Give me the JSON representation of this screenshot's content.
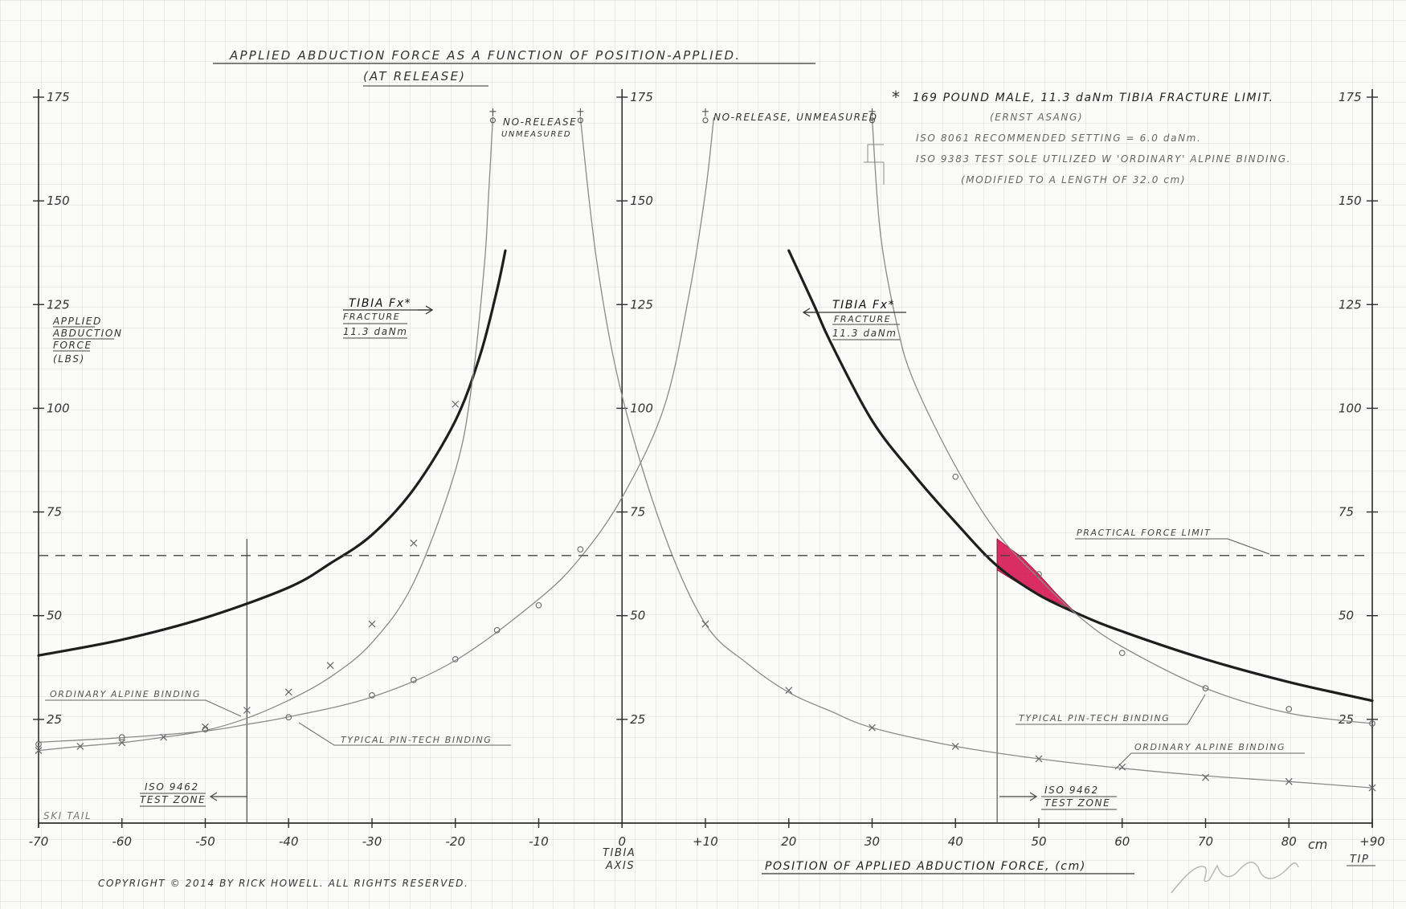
{
  "title": "APPLIED ABDUCTION FORCE AS A FUNCTION OF POSITION-APPLIED.",
  "subtitle": "(AT RELEASE)",
  "notes": {
    "star": "*",
    "line1": "169 POUND MALE, 11.3 daNm TIBIA FRACTURE LIMIT.",
    "line2": "(ERNST ASANG)",
    "line3": "ISO 8061 RECOMMENDED SETTING = 6.0 daNm.",
    "line4": "ISO 9383 TEST SOLE UTILIZED W 'ORDINARY' ALPINE BINDING.",
    "line5": "(MODIFIED TO A LENGTH OF 32.0 cm)"
  },
  "labels": {
    "no_release_left": "NO-RELEASE",
    "unmeasured_left": "UNMEASURED",
    "no_release_right": "NO-RELEASE, UNMEASURED",
    "tibia_left": "TIBIA Fx*",
    "fracture_left": "FRACTURE",
    "danm_left": "11.3 daNm",
    "tibia_right": "TIBIA Fx*",
    "fracture_right": "FRACTURE",
    "danm_right": "11.3 daNm",
    "practical_force_limit": "PRACTICAL FORCE LIMIT",
    "ordinary_left": "ORDINARY ALPINE BINDING",
    "pintech_left": "TYPICAL PIN-TECH BINDING",
    "pintech_right": "TYPICAL PIN-TECH BINDING",
    "ordinary_right": "ORDINARY ALPINE BINDING",
    "iso_left_1": "ISO 9462",
    "iso_left_2": "TEST ZONE",
    "iso_right_1": "ISO 9462",
    "iso_right_2": "TEST ZONE",
    "ski_tail": "SKI TAIL",
    "tibia_axis_1": "TIBIA",
    "tibia_axis_2": "AXIS",
    "tip": "TIP",
    "cm": "cm",
    "ylabel_1": "APPLIED",
    "ylabel_2": "ABDUCTION",
    "ylabel_3": "FORCE",
    "ylabel_4": "(LBS)",
    "xlabel": "POSITION OF APPLIED ABDUCTION FORCE, (cm)",
    "copyright": "COPYRIGHT © 2014 BY RICK HOWELL. ALL RIGHTS RESERVED.",
    "signature": "Rick Howell"
  },
  "colors": {
    "grid": "#d7dbd9",
    "ink": "#2e2e2e",
    "pencil": "#8a8a8a",
    "highlight": "#d4104e"
  },
  "chart_data": {
    "type": "line",
    "xlabel": "POSITION OF APPLIED ABDUCTION FORCE, (cm)",
    "ylabel": "APPLIED ABDUCTION FORCE (LBS)",
    "xlim": [
      -70,
      90
    ],
    "ylim": [
      0,
      175
    ],
    "grid": true,
    "x_ticks": [
      {
        "v": -70,
        "t": "-70"
      },
      {
        "v": -60,
        "t": "-60"
      },
      {
        "v": -50,
        "t": "-50"
      },
      {
        "v": -40,
        "t": "-40"
      },
      {
        "v": -30,
        "t": "-30"
      },
      {
        "v": -20,
        "t": "-20"
      },
      {
        "v": -10,
        "t": "-10"
      },
      {
        "v": 0,
        "t": "0"
      },
      {
        "v": 10,
        "t": "+10"
      },
      {
        "v": 20,
        "t": "20"
      },
      {
        "v": 30,
        "t": "30"
      },
      {
        "v": 40,
        "t": "40"
      },
      {
        "v": 50,
        "t": "50"
      },
      {
        "v": 60,
        "t": "60"
      },
      {
        "v": 70,
        "t": "70"
      },
      {
        "v": 80,
        "t": "80"
      },
      {
        "v": 90,
        "t": "+90"
      }
    ],
    "y_ticks": [
      25,
      50,
      75,
      100,
      125,
      150,
      175
    ],
    "series": [
      {
        "name": "TIBIA Fx* FRACTURE 11.3 daNm",
        "style": "heavy",
        "segments": [
          [
            [
              -70,
              40.4
            ],
            [
              -60,
              44.2
            ],
            [
              -50,
              49.5
            ],
            [
              -40,
              56.8
            ],
            [
              -35,
              62.6
            ],
            [
              -30,
              69.5
            ],
            [
              -25,
              80.5
            ],
            [
              -20,
              97.0
            ],
            [
              -17,
              113.0
            ],
            [
              -15,
              128.5
            ],
            [
              -14,
              138.0
            ]
          ],
          [
            [
              20,
              138.0
            ],
            [
              23,
              125.0
            ],
            [
              25,
              116.0
            ],
            [
              30,
              97.0
            ],
            [
              35,
              84.0
            ],
            [
              40,
              72.5
            ],
            [
              45,
              62.0
            ],
            [
              50,
              55.0
            ],
            [
              55,
              50.2
            ],
            [
              60,
              46.2
            ],
            [
              70,
              39.5
            ],
            [
              80,
              34.0
            ],
            [
              90,
              29.5
            ]
          ]
        ]
      },
      {
        "name": "ORDINARY ALPINE BINDING",
        "marker": "x",
        "segments": [
          [
            [
              -70,
              17.5
            ],
            [
              -65,
              18.5
            ],
            [
              -60,
              19.4
            ],
            [
              -55,
              20.7
            ],
            [
              -50,
              22.3
            ],
            [
              -45,
              25.3
            ],
            [
              -40,
              29.6
            ],
            [
              -35,
              35.2
            ],
            [
              -30,
              43.5
            ],
            [
              -25,
              58.0
            ],
            [
              -20,
              85.0
            ],
            [
              -18,
              106.0
            ],
            [
              -16.5,
              135.0
            ],
            [
              -16,
              152.0
            ],
            [
              -15.5,
              170.0
            ]
          ],
          [
            [
              -5,
              170.0
            ],
            [
              -3,
              135.0
            ],
            [
              0,
              103.0
            ],
            [
              5,
              70.0
            ],
            [
              10,
              48.0
            ],
            [
              15,
              38.5
            ],
            [
              20,
              31.5
            ],
            [
              25,
              27.0
            ],
            [
              30,
              23.0
            ],
            [
              40,
              18.5
            ],
            [
              50,
              15.5
            ],
            [
              60,
              13.2
            ],
            [
              70,
              11.4
            ],
            [
              80,
              10.0
            ],
            [
              90,
              8.5
            ]
          ]
        ],
        "points": [
          [
            -70,
            17.5
          ],
          [
            -65,
            18.5
          ],
          [
            -60,
            19.4
          ],
          [
            -55,
            20.7
          ],
          [
            -50,
            23.2
          ],
          [
            -45,
            27.2
          ],
          [
            -40,
            31.6
          ],
          [
            -35,
            38.0
          ],
          [
            -30,
            48.0
          ],
          [
            -25,
            67.5
          ],
          [
            -20,
            101.0
          ],
          [
            10,
            48.0
          ],
          [
            20,
            32.0
          ],
          [
            30,
            23.0
          ],
          [
            40,
            18.5
          ],
          [
            50,
            15.5
          ],
          [
            60,
            13.5
          ],
          [
            70,
            11.0
          ],
          [
            80,
            10.0
          ],
          [
            90,
            8.5
          ]
        ],
        "unmeasured": [
          [
            -15.5,
            170.0
          ],
          [
            -5,
            170.0
          ]
        ]
      },
      {
        "name": "TYPICAL PIN-TECH BINDING",
        "marker": "o",
        "segments": [
          [
            [
              -70,
              19.5
            ],
            [
              -60,
              20.6
            ],
            [
              -50,
              22.2
            ],
            [
              -45,
              23.8
            ],
            [
              -40,
              25.6
            ],
            [
              -30,
              30.4
            ],
            [
              -20,
              39.2
            ],
            [
              -10,
              54.0
            ],
            [
              -5,
              64.0
            ],
            [
              0,
              78.5
            ],
            [
              5,
              100.0
            ],
            [
              8,
              127.0
            ],
            [
              10,
              152.0
            ],
            [
              11,
              170.0
            ]
          ],
          [
            [
              30,
              170.0
            ],
            [
              31,
              142.0
            ],
            [
              33,
              120.0
            ],
            [
              35,
              106.5
            ],
            [
              40,
              86.0
            ],
            [
              45,
              70.0
            ],
            [
              50,
              59.0
            ],
            [
              55,
              49.5
            ],
            [
              60,
              42.5
            ],
            [
              70,
              32.5
            ],
            [
              80,
              26.5
            ],
            [
              90,
              24.0
            ]
          ]
        ],
        "points": [
          [
            -70,
            19.0
          ],
          [
            -60,
            20.7
          ],
          [
            -50,
            22.6
          ],
          [
            -40,
            25.5
          ],
          [
            -30,
            30.8
          ],
          [
            -25,
            34.5
          ],
          [
            -20,
            39.5
          ],
          [
            -15,
            46.5
          ],
          [
            -10,
            52.5
          ],
          [
            -5,
            66.0
          ],
          [
            40,
            83.5
          ],
          [
            50,
            60.0
          ],
          [
            60,
            41.0
          ],
          [
            70,
            32.5
          ],
          [
            80,
            27.5
          ],
          [
            90,
            24.0
          ]
        ],
        "unmeasured": [
          [
            10,
            170.0
          ],
          [
            30,
            170.0
          ]
        ]
      },
      {
        "name": "PRACTICAL FORCE LIMIT",
        "style": "dashed",
        "y": 64.5
      }
    ],
    "annotations": {
      "iso_test_zone": [
        -45,
        45
      ],
      "unsafe_region": [
        [
          45,
          68.5
        ],
        [
          46,
          67.0
        ],
        [
          48,
          64.0
        ],
        [
          50,
          60.0
        ],
        [
          52,
          55.5
        ],
        [
          54,
          51.5
        ],
        [
          55,
          50.2
        ],
        [
          53,
          52.5
        ],
        [
          50,
          55.0
        ],
        [
          47,
          58.5
        ],
        [
          45,
          61.0
        ]
      ]
    }
  }
}
